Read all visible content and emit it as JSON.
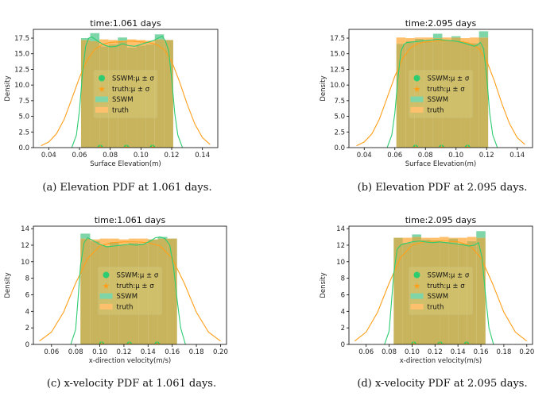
{
  "colors": {
    "sswm": "#2ecc71",
    "truth": "#ff9f1a",
    "sswm_hist": "#7ed6a8",
    "truth_hist": "#ffc06e",
    "overlap": "#c8b45c"
  },
  "legend": {
    "sswm_stat": "SSWM:μ ± σ",
    "truth_stat": "truth:μ ± σ",
    "sswm": "SSWM",
    "truth": "truth"
  },
  "chart_data": [
    {
      "type": "bar",
      "title": "time:1.061 days",
      "caption": "(a) Elevation PDF at 1.061 days.",
      "xlabel": "Surface Elevation(m)",
      "ylabel": "Density",
      "xlim": [
        0.03,
        0.15
      ],
      "ylim": [
        0,
        18.9
      ],
      "xticks": [
        0.04,
        0.06,
        0.08,
        0.1,
        0.12,
        0.14
      ],
      "xtick_labels": [
        "0.04",
        "0.06",
        "0.08",
        "0.10",
        "0.12",
        "0.14"
      ],
      "yticks": [
        0,
        2.5,
        5,
        7.5,
        10,
        12.5,
        15,
        17.5
      ],
      "ytick_labels": [
        "0.0",
        "2.5",
        "5.0",
        "7.5",
        "10.0",
        "12.5",
        "15.0",
        "17.5"
      ],
      "bin_edges": [
        0.061,
        0.067,
        0.073,
        0.079,
        0.085,
        0.091,
        0.097,
        0.103,
        0.109,
        0.115,
        0.121
      ],
      "sswm_hist": [
        17.5,
        18.3,
        16.2,
        16.5,
        17.6,
        16.0,
        16.3,
        16.5,
        18.1,
        17.2
      ],
      "truth_hist": [
        17.2,
        17.0,
        17.3,
        17.2,
        17.1,
        17.3,
        17.2,
        17.1,
        17.3,
        17.2
      ],
      "sswm_kde": {
        "x": [
          0.055,
          0.058,
          0.06,
          0.062,
          0.064,
          0.066,
          0.068,
          0.072,
          0.076,
          0.08,
          0.084,
          0.088,
          0.092,
          0.096,
          0.1,
          0.104,
          0.108,
          0.112,
          0.114,
          0.116,
          0.118,
          0.12,
          0.122,
          0.124,
          0.127
        ],
        "y": [
          0,
          2,
          6,
          12,
          16.2,
          17.5,
          17.7,
          17.0,
          16.4,
          16.1,
          16.2,
          16.6,
          16.3,
          16.2,
          16.5,
          16.8,
          17.1,
          17.6,
          17.8,
          17.0,
          15.5,
          11,
          5.5,
          2,
          0
        ]
      },
      "truth_kde": {
        "x": [
          0.035,
          0.04,
          0.045,
          0.05,
          0.055,
          0.06,
          0.065,
          0.07,
          0.075,
          0.08,
          0.085,
          0.09,
          0.095,
          0.1,
          0.105,
          0.11,
          0.115,
          0.12,
          0.125,
          0.13,
          0.135,
          0.14,
          0.145
        ],
        "y": [
          0.3,
          0.9,
          2.2,
          4.5,
          7.8,
          11.2,
          14.0,
          15.7,
          16.5,
          16.8,
          16.9,
          17.0,
          17.0,
          16.9,
          16.8,
          16.5,
          15.7,
          13.8,
          10.6,
          7.0,
          3.8,
          1.6,
          0.5
        ]
      },
      "sswm_stat_points": [
        0.0735,
        0.0905,
        0.1075
      ],
      "truth_stat_points": [
        0.0735,
        0.0905,
        0.1075
      ]
    },
    {
      "type": "bar",
      "title": "time:2.095 days",
      "caption": "(b) Elevation PDF at 2.095 days.",
      "xlabel": "Surface Elevation(m)",
      "ylabel": "Density",
      "xlim": [
        0.03,
        0.15
      ],
      "ylim": [
        0,
        18.9
      ],
      "xticks": [
        0.04,
        0.06,
        0.08,
        0.1,
        0.12,
        0.14
      ],
      "xtick_labels": [
        "0.04",
        "0.06",
        "0.08",
        "0.10",
        "0.12",
        "0.14"
      ],
      "yticks": [
        0,
        2.5,
        5,
        7.5,
        10,
        12.5,
        15,
        17.5
      ],
      "ytick_labels": [
        "0.0",
        "2.5",
        "5.0",
        "7.5",
        "10.0",
        "12.5",
        "15.0",
        "17.5"
      ],
      "bin_edges": [
        0.061,
        0.067,
        0.073,
        0.079,
        0.085,
        0.091,
        0.097,
        0.103,
        0.109,
        0.115,
        0.121
      ],
      "sswm_hist": [
        16.6,
        17.0,
        17.4,
        17.1,
        18.2,
        17.2,
        17.8,
        16.8,
        16.7,
        18.6
      ],
      "truth_hist": [
        17.6,
        17.5,
        17.6,
        17.6,
        17.5,
        17.6,
        17.6,
        17.5,
        17.6,
        17.6
      ],
      "sswm_kde": {
        "x": [
          0.055,
          0.058,
          0.06,
          0.062,
          0.064,
          0.066,
          0.068,
          0.072,
          0.076,
          0.08,
          0.084,
          0.088,
          0.092,
          0.096,
          0.1,
          0.104,
          0.108,
          0.112,
          0.114,
          0.116,
          0.118,
          0.12,
          0.122,
          0.124,
          0.127
        ],
        "y": [
          0,
          2,
          5.5,
          11,
          15.4,
          16.5,
          16.8,
          16.9,
          17.0,
          17.1,
          17.2,
          17.3,
          17.2,
          17.1,
          17.0,
          16.8,
          16.5,
          16.2,
          16.4,
          16.8,
          15.8,
          11.5,
          5.5,
          2,
          0
        ]
      },
      "truth_kde": {
        "x": [
          0.035,
          0.04,
          0.045,
          0.05,
          0.055,
          0.06,
          0.065,
          0.07,
          0.075,
          0.08,
          0.085,
          0.09,
          0.095,
          0.1,
          0.105,
          0.11,
          0.115,
          0.12,
          0.125,
          0.13,
          0.135,
          0.14,
          0.145
        ],
        "y": [
          0.3,
          0.9,
          2.2,
          4.6,
          8.0,
          11.4,
          14.2,
          15.9,
          16.6,
          16.9,
          17.0,
          17.1,
          17.1,
          17.0,
          16.9,
          16.6,
          15.8,
          13.9,
          10.7,
          7.0,
          3.8,
          1.6,
          0.5
        ]
      },
      "sswm_stat_points": [
        0.0735,
        0.0905,
        0.1075
      ],
      "truth_stat_points": [
        0.0735,
        0.0905,
        0.1075
      ]
    },
    {
      "type": "bar",
      "title": "time:1.061 days",
      "caption": "(c) x-velocity PDF at 1.061 days.",
      "xlabel": "x-direction velocity(m/s)",
      "ylabel": "Density",
      "xlim": [
        0.045,
        0.205
      ],
      "ylim": [
        0,
        14.3
      ],
      "xticks": [
        0.06,
        0.08,
        0.1,
        0.12,
        0.14,
        0.16,
        0.18,
        0.2
      ],
      "xtick_labels": [
        "0.06",
        "0.08",
        "0.10",
        "0.12",
        "0.14",
        "0.16",
        "0.18",
        "0.20"
      ],
      "yticks": [
        0,
        2,
        4,
        6,
        8,
        10,
        12,
        14
      ],
      "ytick_labels": [
        "0",
        "2",
        "4",
        "6",
        "8",
        "10",
        "12",
        "14"
      ],
      "bin_edges": [
        0.084,
        0.092,
        0.1,
        0.108,
        0.116,
        0.124,
        0.132,
        0.14,
        0.148,
        0.156,
        0.164
      ],
      "sswm_hist": [
        13.4,
        12.5,
        11.9,
        12.4,
        12.0,
        12.3,
        12.2,
        12.7,
        13.0,
        12.8
      ],
      "truth_hist": [
        12.8,
        12.7,
        12.8,
        12.8,
        12.7,
        12.8,
        12.8,
        12.7,
        12.8,
        12.8
      ],
      "sswm_kde": {
        "x": [
          0.076,
          0.08,
          0.082,
          0.084,
          0.087,
          0.09,
          0.094,
          0.1,
          0.106,
          0.112,
          0.118,
          0.124,
          0.13,
          0.136,
          0.142,
          0.146,
          0.15,
          0.154,
          0.158,
          0.161,
          0.164,
          0.167,
          0.171
        ],
        "y": [
          0,
          1.8,
          5.5,
          9.5,
          12.3,
          12.9,
          12.6,
          12.1,
          11.8,
          11.9,
          12.0,
          12.1,
          12.0,
          12.1,
          12.5,
          12.9,
          13.0,
          12.8,
          12.0,
          9.5,
          5.5,
          2,
          0
        ]
      },
      "truth_kde": {
        "x": [
          0.05,
          0.06,
          0.07,
          0.08,
          0.09,
          0.1,
          0.11,
          0.12,
          0.13,
          0.14,
          0.15,
          0.16,
          0.17,
          0.18,
          0.19,
          0.2
        ],
        "y": [
          0.4,
          1.5,
          3.9,
          7.4,
          10.4,
          11.9,
          12.3,
          12.4,
          12.4,
          12.3,
          11.9,
          10.4,
          7.4,
          3.9,
          1.5,
          0.4
        ]
      },
      "sswm_stat_points": [
        0.1015,
        0.1245,
        0.1475
      ],
      "truth_stat_points": [
        0.1015,
        0.1245,
        0.1475
      ]
    },
    {
      "type": "bar",
      "title": "time:2.095 days",
      "caption": "(d) x-velocity PDF at 2.095 days.",
      "xlabel": "x-direction velocity(m/s)",
      "ylabel": "Density",
      "xlim": [
        0.045,
        0.205
      ],
      "ylim": [
        0,
        14.3
      ],
      "xticks": [
        0.06,
        0.08,
        0.1,
        0.12,
        0.14,
        0.16,
        0.18,
        0.2
      ],
      "xtick_labels": [
        "0.06",
        "0.08",
        "0.10",
        "0.12",
        "0.14",
        "0.16",
        "0.18",
        "0.20"
      ],
      "yticks": [
        0,
        2,
        4,
        6,
        8,
        10,
        12,
        14
      ],
      "ytick_labels": [
        "0",
        "2",
        "4",
        "6",
        "8",
        "10",
        "12",
        "14"
      ],
      "bin_edges": [
        0.084,
        0.092,
        0.1,
        0.108,
        0.116,
        0.124,
        0.132,
        0.14,
        0.148,
        0.156,
        0.164
      ],
      "sswm_hist": [
        12.9,
        12.3,
        13.3,
        12.7,
        12.6,
        12.4,
        12.8,
        12.2,
        12.5,
        13.7
      ],
      "truth_hist": [
        12.9,
        12.9,
        13.0,
        12.9,
        12.9,
        13.0,
        12.9,
        12.9,
        13.0,
        12.9
      ],
      "sswm_kde": {
        "x": [
          0.076,
          0.08,
          0.082,
          0.084,
          0.087,
          0.09,
          0.094,
          0.1,
          0.106,
          0.112,
          0.118,
          0.124,
          0.13,
          0.136,
          0.142,
          0.146,
          0.15,
          0.154,
          0.158,
          0.161,
          0.164,
          0.167,
          0.171
        ],
        "y": [
          0,
          1.6,
          5,
          8.5,
          11.5,
          12.0,
          12.2,
          12.4,
          12.5,
          12.4,
          12.3,
          12.4,
          12.3,
          12.2,
          12.1,
          12.0,
          11.9,
          12.0,
          12.3,
          10.5,
          6,
          2,
          0
        ]
      },
      "truth_kde": {
        "x": [
          0.05,
          0.06,
          0.07,
          0.08,
          0.09,
          0.1,
          0.11,
          0.12,
          0.13,
          0.14,
          0.15,
          0.16,
          0.17,
          0.18,
          0.19,
          0.2
        ],
        "y": [
          0.4,
          1.5,
          3.9,
          7.4,
          10.5,
          12.0,
          12.4,
          12.5,
          12.5,
          12.4,
          12.0,
          10.5,
          7.4,
          3.9,
          1.5,
          0.4
        ]
      },
      "sswm_stat_points": [
        0.1015,
        0.1245,
        0.1475
      ],
      "truth_stat_points": [
        0.1015,
        0.1245,
        0.1475
      ]
    }
  ]
}
